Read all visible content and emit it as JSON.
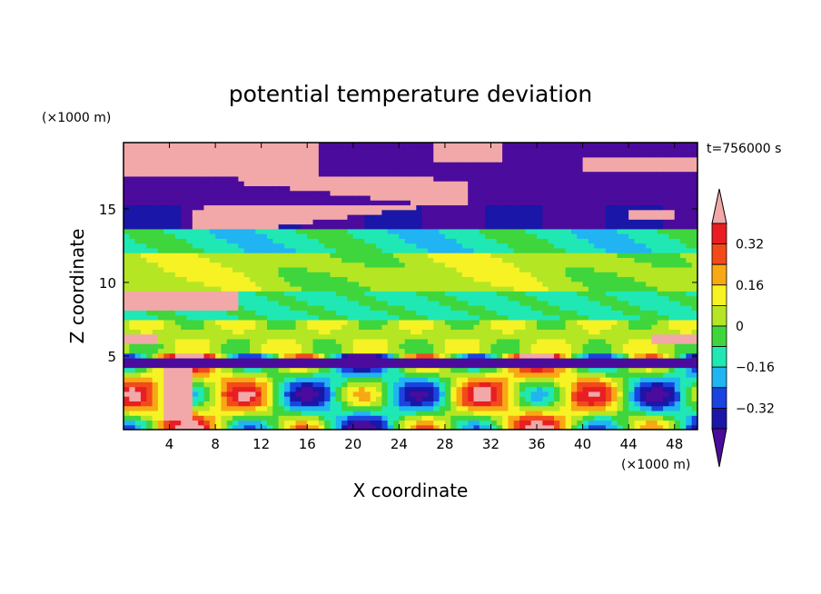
{
  "chart_data": {
    "type": "heatmap",
    "title": "potential temperature deviation",
    "xlabel": "X coordinate",
    "ylabel": "Z coordinate",
    "x_unit": "(×1000 m)",
    "y_unit": "(×1000 m)",
    "time_label": "t=756000 s",
    "xlim": [
      0,
      50
    ],
    "ylim": [
      0,
      19.5
    ],
    "x_ticks": [
      "4",
      "8",
      "12",
      "16",
      "20",
      "24",
      "28",
      "32",
      "36",
      "40",
      "44",
      "48"
    ],
    "y_ticks": [
      "5",
      "10",
      "15"
    ],
    "colorbar": {
      "tick_labels": [
        "0.32",
        "0.16",
        "0",
        "−0.16",
        "−0.32"
      ],
      "tick_values": [
        0.32,
        0.16,
        0,
        -0.16,
        -0.32
      ],
      "levels": [
        -0.4,
        -0.32,
        -0.24,
        -0.16,
        -0.08,
        0,
        0.08,
        0.16,
        0.24,
        0.32,
        0.4
      ],
      "colors": [
        "#4b0b9c",
        "#1a16a8",
        "#1a44e0",
        "#21b4f2",
        "#20e8b4",
        "#3ed63c",
        "#b4e624",
        "#f6f224",
        "#f8a814",
        "#f24a1a",
        "#e81e22",
        "#f2a8a8"
      ]
    }
  }
}
